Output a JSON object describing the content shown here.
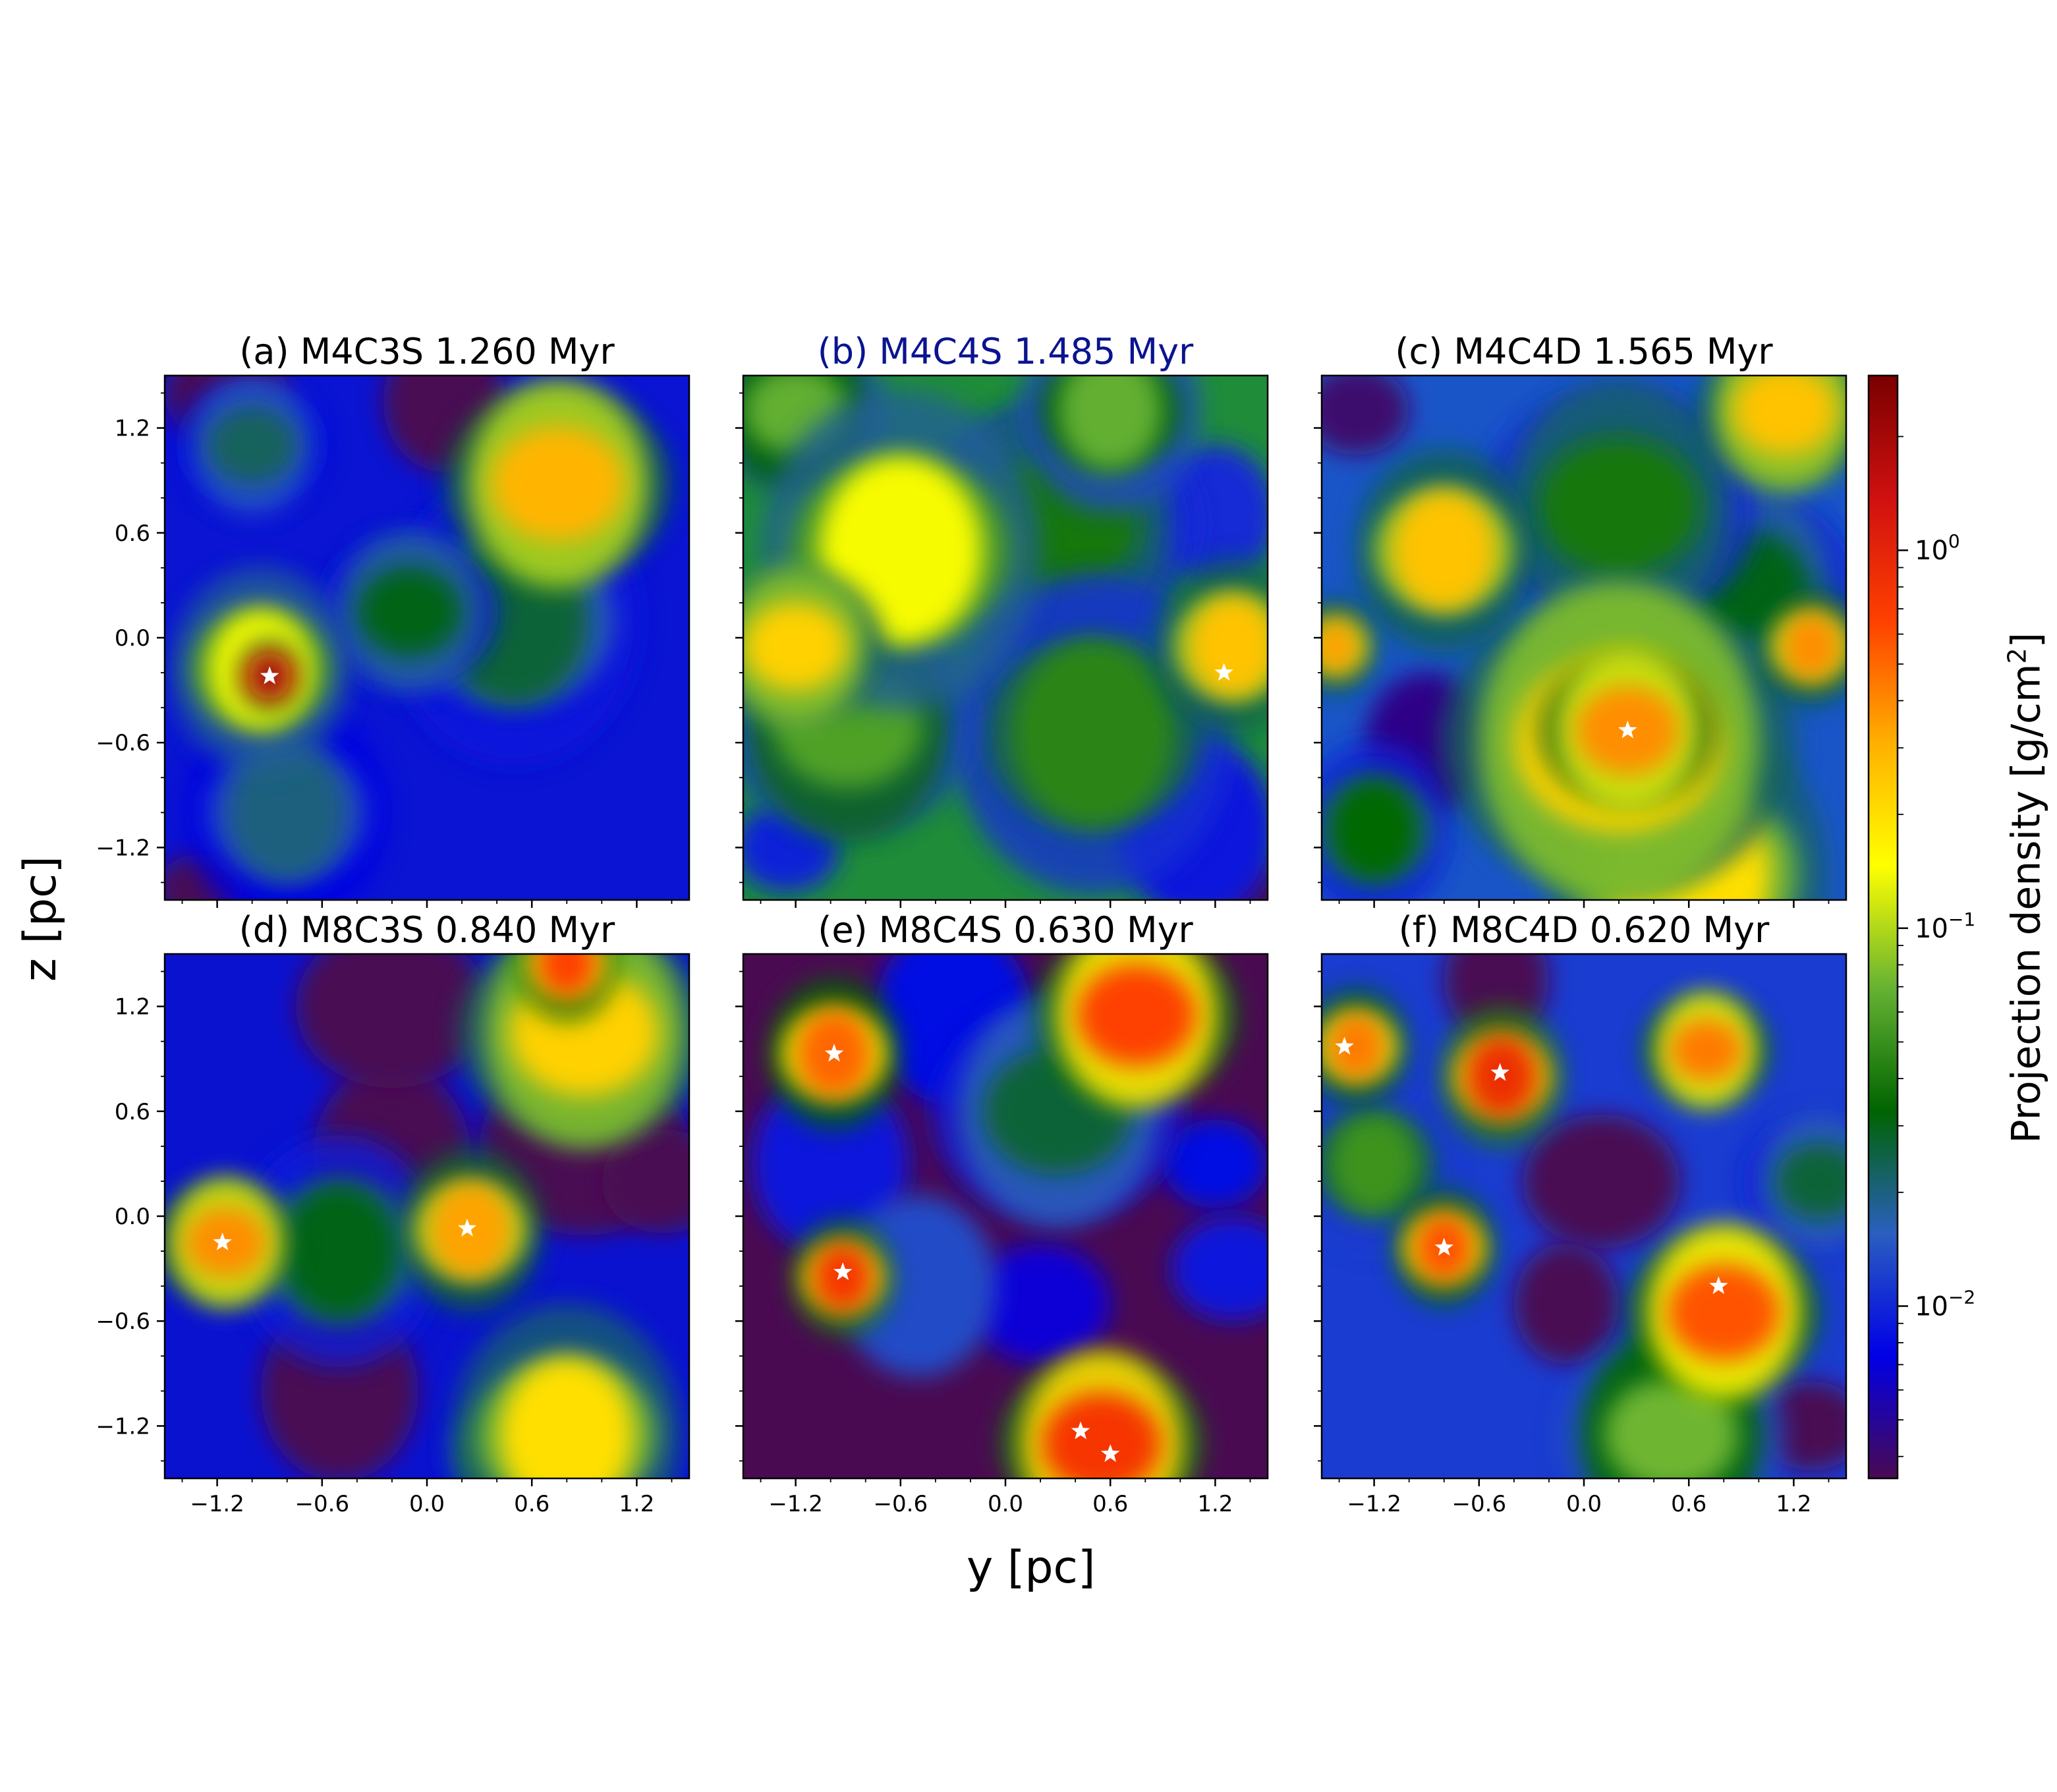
{
  "figure": {
    "xlabel": "y [pc]",
    "ylabel": "z [pc]",
    "colorbar_label_main": "Projection density [g/cm",
    "colorbar_label_sup": "2",
    "colorbar_label_end": "]"
  },
  "chart_data": {
    "type": "heatmap",
    "xlim": [
      -1.5,
      1.5
    ],
    "ylim": [
      -1.5,
      1.5
    ],
    "x_ticks": [
      -1.2,
      -0.6,
      0.0,
      0.6,
      1.2
    ],
    "y_ticks": [
      -1.2,
      -0.6,
      0.0,
      0.6,
      1.2
    ],
    "x_tick_labels": [
      "−1.2",
      "−0.6",
      "0.0",
      "0.6",
      "1.2"
    ],
    "y_tick_labels": [
      "−1.2",
      "−0.6",
      "0.0",
      "0.6",
      "1.2"
    ],
    "colorbar": {
      "scale": "log",
      "range": [
        0.0035,
        2.9
      ],
      "ticks": [
        0.01,
        0.1,
        1
      ],
      "tick_labels": [
        {
          "base": "10",
          "exp": "−2"
        },
        {
          "base": "10",
          "exp": "−1"
        },
        {
          "base": "10",
          "exp": "0"
        }
      ],
      "colors": [
        "#4a0a52",
        "#0000e6",
        "#2a5fbf",
        "#006400",
        "#66b233",
        "#ffff00",
        "#ffb000",
        "#ff4000",
        "#d01010",
        "#7a0000"
      ]
    },
    "panels": [
      {
        "title": "(a) M4C3S 1.260 Myr",
        "title_color": "#000000",
        "background": "#0a14d2",
        "stars": [
          {
            "y": -0.9,
            "z": -0.22
          }
        ],
        "blobs": [
          {
            "y": -0.95,
            "z": -0.18,
            "r": 0.35,
            "v": 0.55
          },
          {
            "y": -0.9,
            "z": -0.22,
            "r": 0.14,
            "v": 0.95
          },
          {
            "y": 0.75,
            "z": 0.88,
            "r": 0.45,
            "v": 0.66
          },
          {
            "y": -0.1,
            "z": 0.15,
            "r": 0.35,
            "v": 0.32
          },
          {
            "y": 0.5,
            "z": 0.1,
            "r": 0.5,
            "v": 0.3
          },
          {
            "y": -1.0,
            "z": 1.1,
            "r": 0.3,
            "v": 0.28
          },
          {
            "y": -0.8,
            "z": -1.0,
            "r": 0.4,
            "v": 0.26
          },
          {
            "y": -1.15,
            "z": 1.4,
            "r": 0.35,
            "v": 0.0
          },
          {
            "y": 0.1,
            "z": 1.35,
            "r": 0.35,
            "v": 0.0
          },
          {
            "y": -1.3,
            "z": -1.45,
            "r": 0.25,
            "v": 0.0
          }
        ]
      },
      {
        "title": "(b) M4C4S 1.485 Myr",
        "title_color": "#0a1490",
        "background": "#1f8c3a",
        "stars": [
          {
            "y": 1.25,
            "z": -0.2
          }
        ],
        "blobs": [
          {
            "y": -0.6,
            "z": 0.5,
            "r": 0.55,
            "v": 0.55
          },
          {
            "y": -1.2,
            "z": -0.05,
            "r": 0.35,
            "v": 0.62
          },
          {
            "y": 1.3,
            "z": -0.05,
            "r": 0.3,
            "v": 0.64
          },
          {
            "y": -0.9,
            "z": -0.5,
            "r": 0.5,
            "v": 0.42
          },
          {
            "y": 0.5,
            "z": -0.55,
            "r": 0.55,
            "v": 0.38
          },
          {
            "y": 0.3,
            "z": 0.65,
            "r": 0.55,
            "v": 0.36
          },
          {
            "y": 0.6,
            "z": 1.3,
            "r": 0.35,
            "v": 0.44
          },
          {
            "y": -1.2,
            "z": 1.3,
            "r": 0.35,
            "v": 0.44
          },
          {
            "y": 1.1,
            "z": -1.1,
            "r": 0.45,
            "v": 0.14
          },
          {
            "y": -1.25,
            "z": -1.2,
            "r": 0.3,
            "v": 0.15
          },
          {
            "y": 1.2,
            "z": 0.7,
            "r": 0.35,
            "v": 0.16
          },
          {
            "y": 1.4,
            "z": -1.45,
            "r": 0.22,
            "v": 0.0
          }
        ]
      },
      {
        "title": "(c) M4C4D 1.565 Myr",
        "title_color": "#000000",
        "background": "#1a55c8",
        "stars": [
          {
            "y": 0.25,
            "z": -0.53
          }
        ],
        "blobs": [
          {
            "y": 0.2,
            "z": -0.6,
            "r": 0.7,
            "v": 0.62
          },
          {
            "y": 0.25,
            "z": -0.53,
            "r": 0.35,
            "v": 0.7
          },
          {
            "y": -0.8,
            "z": 0.5,
            "r": 0.35,
            "v": 0.64
          },
          {
            "y": 1.15,
            "z": 1.3,
            "r": 0.35,
            "v": 0.64
          },
          {
            "y": 1.3,
            "z": -0.05,
            "r": 0.2,
            "v": 0.7
          },
          {
            "y": -1.42,
            "z": -0.05,
            "r": 0.16,
            "v": 0.68
          },
          {
            "y": 0.6,
            "z": -1.35,
            "r": 0.55,
            "v": 0.6
          },
          {
            "y": 0.2,
            "z": 0.75,
            "r": 0.55,
            "v": 0.36
          },
          {
            "y": 0.9,
            "z": 0.3,
            "r": 0.45,
            "v": 0.32
          },
          {
            "y": -1.2,
            "z": -1.1,
            "r": 0.3,
            "v": 0.34
          },
          {
            "y": -1.3,
            "z": 1.3,
            "r": 0.3,
            "v": 0.02
          },
          {
            "y": -0.9,
            "z": -0.6,
            "r": 0.35,
            "v": 0.04
          }
        ]
      },
      {
        "title": "(d) M8C3S 0.840 Myr",
        "title_color": "#000000",
        "background": "#0a12d0",
        "stars": [
          {
            "y": -1.17,
            "z": -0.15
          },
          {
            "y": 0.23,
            "z": -0.07
          }
        ],
        "blobs": [
          {
            "y": 0.9,
            "z": 1.05,
            "r": 0.5,
            "v": 0.62
          },
          {
            "y": 0.8,
            "z": 1.45,
            "r": 0.2,
            "v": 0.78
          },
          {
            "y": -1.15,
            "z": -0.15,
            "r": 0.28,
            "v": 0.7
          },
          {
            "y": 0.25,
            "z": -0.08,
            "r": 0.28,
            "v": 0.68
          },
          {
            "y": 0.8,
            "z": -1.25,
            "r": 0.45,
            "v": 0.6
          },
          {
            "y": 0.5,
            "z": -1.35,
            "r": 0.25,
            "v": 0.45
          },
          {
            "y": -0.5,
            "z": -0.2,
            "r": 0.4,
            "v": 0.32
          },
          {
            "y": 0.9,
            "z": 0.4,
            "r": 0.6,
            "v": 0.0
          },
          {
            "y": -0.2,
            "z": 0.35,
            "r": 0.45,
            "v": 0.0
          },
          {
            "y": -0.2,
            "z": 1.2,
            "r": 0.55,
            "v": 0.0
          },
          {
            "y": -0.5,
            "z": -1.0,
            "r": 0.45,
            "v": 0.0
          },
          {
            "y": 1.35,
            "z": 0.2,
            "r": 0.35,
            "v": 0.0
          }
        ]
      },
      {
        "title": "(e) M8C4S 0.630 Myr",
        "title_color": "#000000",
        "background": "#4a0a52",
        "stars": [
          {
            "y": -0.98,
            "z": 0.93
          },
          {
            "y": -0.93,
            "z": -0.32
          },
          {
            "y": 0.43,
            "z": -1.23
          },
          {
            "y": 0.6,
            "z": -1.36
          }
        ],
        "blobs": [
          {
            "y": -0.98,
            "z": 0.93,
            "r": 0.26,
            "v": 0.74
          },
          {
            "y": -0.93,
            "z": -0.35,
            "r": 0.2,
            "v": 0.8
          },
          {
            "y": 0.75,
            "z": 1.15,
            "r": 0.4,
            "v": 0.78
          },
          {
            "y": 0.55,
            "z": -1.3,
            "r": 0.4,
            "v": 0.8
          },
          {
            "y": -0.3,
            "z": 1.15,
            "r": 0.45,
            "v": 0.12
          },
          {
            "y": 0.3,
            "z": 0.6,
            "r": 0.5,
            "v": 0.3
          },
          {
            "y": -1.0,
            "z": 0.3,
            "r": 0.45,
            "v": 0.14
          },
          {
            "y": -0.5,
            "z": -0.4,
            "r": 0.45,
            "v": 0.2
          },
          {
            "y": 0.2,
            "z": -0.5,
            "r": 0.4,
            "v": 0.1
          },
          {
            "y": 1.3,
            "z": -0.3,
            "r": 0.35,
            "v": 0.14
          },
          {
            "y": 1.2,
            "z": 0.3,
            "r": 0.3,
            "v": 0.12
          }
        ]
      },
      {
        "title": "(f) M8C4D 0.620 Myr",
        "title_color": "#000000",
        "background": "#1a3cd0",
        "stars": [
          {
            "y": -1.37,
            "z": 0.97
          },
          {
            "y": -0.48,
            "z": 0.82
          },
          {
            "y": -0.8,
            "z": -0.18
          },
          {
            "y": 0.77,
            "z": -0.4
          }
        ],
        "blobs": [
          {
            "y": -1.3,
            "z": 0.97,
            "r": 0.2,
            "v": 0.72
          },
          {
            "y": -0.47,
            "z": 0.8,
            "r": 0.24,
            "v": 0.82
          },
          {
            "y": -0.8,
            "z": -0.18,
            "r": 0.2,
            "v": 0.76
          },
          {
            "y": 0.8,
            "z": -0.55,
            "r": 0.38,
            "v": 0.76
          },
          {
            "y": 0.7,
            "z": 0.95,
            "r": 0.25,
            "v": 0.72
          },
          {
            "y": 0.5,
            "z": -1.25,
            "r": 0.45,
            "v": 0.45
          },
          {
            "y": -1.2,
            "z": 0.3,
            "r": 0.3,
            "v": 0.4
          },
          {
            "y": 0.1,
            "z": 0.2,
            "r": 0.45,
            "v": 0.0
          },
          {
            "y": -0.1,
            "z": -0.5,
            "r": 0.3,
            "v": 0.0
          },
          {
            "y": 1.3,
            "z": -1.2,
            "r": 0.3,
            "v": 0.0
          },
          {
            "y": -0.5,
            "z": 1.35,
            "r": 0.3,
            "v": 0.0
          },
          {
            "y": 1.35,
            "z": 0.2,
            "r": 0.3,
            "v": 0.3
          }
        ]
      }
    ]
  }
}
